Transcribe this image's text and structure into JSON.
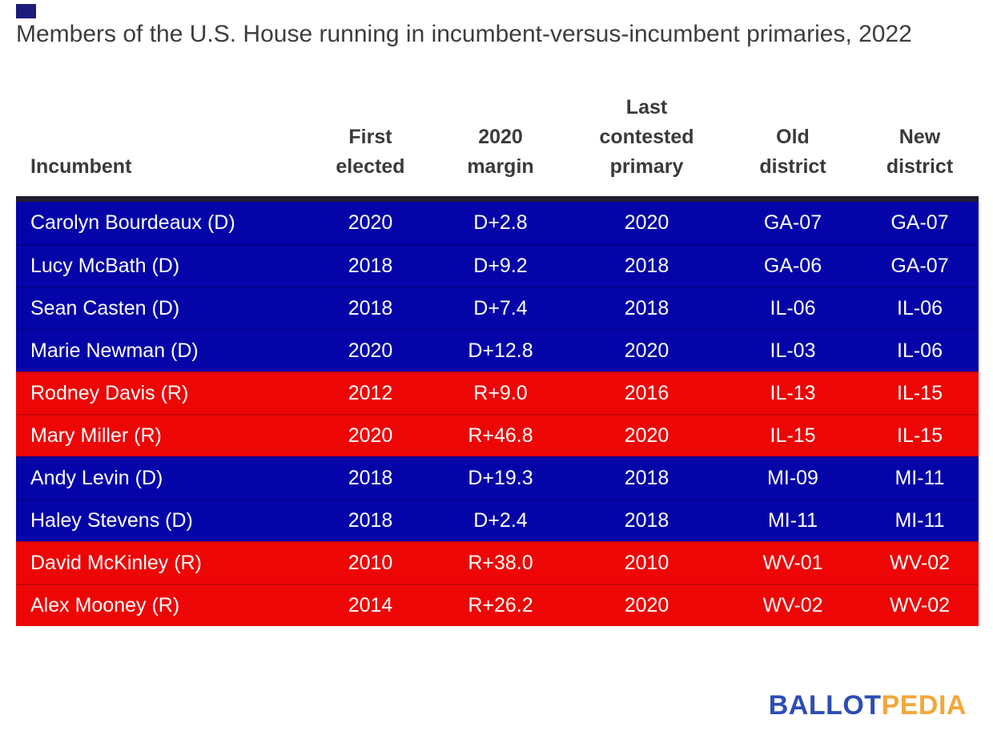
{
  "title": "Members of the U.S. House running in incumbent-versus-incumbent primaries, 2022",
  "logo": {
    "part1": "BALLOT",
    "part2": "PEDIA"
  },
  "colors": {
    "democrat_row": "#0404a8",
    "republican_row": "#ee0505",
    "table_top_border": "#1d1d30",
    "title_text": "#3d3d3d",
    "row_text": "#ffffff",
    "logo_blue": "#2d4cb5",
    "logo_gold": "#f3a73c"
  },
  "chart_data": {
    "type": "table",
    "title": "Members of the U.S. House running in incumbent-versus-incumbent primaries, 2022",
    "columns": [
      "Incumbent",
      "First\nelected",
      "2020\nmargin",
      "Last\ncontested\nprimary",
      "Old\ndistrict",
      "New\ndistrict"
    ],
    "rows": [
      {
        "incumbent": "Carolyn Bourdeaux (D)",
        "party": "D",
        "first_elected": "2020",
        "margin": "D+2.8",
        "last_primary": "2020",
        "old_district": "GA-07",
        "new_district": "GA-07"
      },
      {
        "incumbent": "Lucy McBath (D)",
        "party": "D",
        "first_elected": "2018",
        "margin": "D+9.2",
        "last_primary": "2018",
        "old_district": "GA-06",
        "new_district": "GA-07"
      },
      {
        "incumbent": "Sean Casten (D)",
        "party": "D",
        "first_elected": "2018",
        "margin": "D+7.4",
        "last_primary": "2018",
        "old_district": "IL-06",
        "new_district": "IL-06"
      },
      {
        "incumbent": "Marie Newman (D)",
        "party": "D",
        "first_elected": "2020",
        "margin": "D+12.8",
        "last_primary": "2020",
        "old_district": "IL-03",
        "new_district": "IL-06"
      },
      {
        "incumbent": "Rodney Davis (R)",
        "party": "R",
        "first_elected": "2012",
        "margin": "R+9.0",
        "last_primary": "2016",
        "old_district": "IL-13",
        "new_district": "IL-15"
      },
      {
        "incumbent": "Mary Miller (R)",
        "party": "R",
        "first_elected": "2020",
        "margin": "R+46.8",
        "last_primary": "2020",
        "old_district": "IL-15",
        "new_district": "IL-15"
      },
      {
        "incumbent": "Andy Levin (D)",
        "party": "D",
        "first_elected": "2018",
        "margin": "D+19.3",
        "last_primary": "2018",
        "old_district": "MI-09",
        "new_district": "MI-11"
      },
      {
        "incumbent": "Haley Stevens (D)",
        "party": "D",
        "first_elected": "2018",
        "margin": "D+2.4",
        "last_primary": "2018",
        "old_district": "MI-11",
        "new_district": "MI-11"
      },
      {
        "incumbent": "David McKinley (R)",
        "party": "R",
        "first_elected": "2010",
        "margin": "R+38.0",
        "last_primary": "2010",
        "old_district": "WV-01",
        "new_district": "WV-02"
      },
      {
        "incumbent": "Alex Mooney (R)",
        "party": "R",
        "first_elected": "2014",
        "margin": "R+26.2",
        "last_primary": "2020",
        "old_district": "WV-02",
        "new_district": "WV-02"
      }
    ]
  }
}
